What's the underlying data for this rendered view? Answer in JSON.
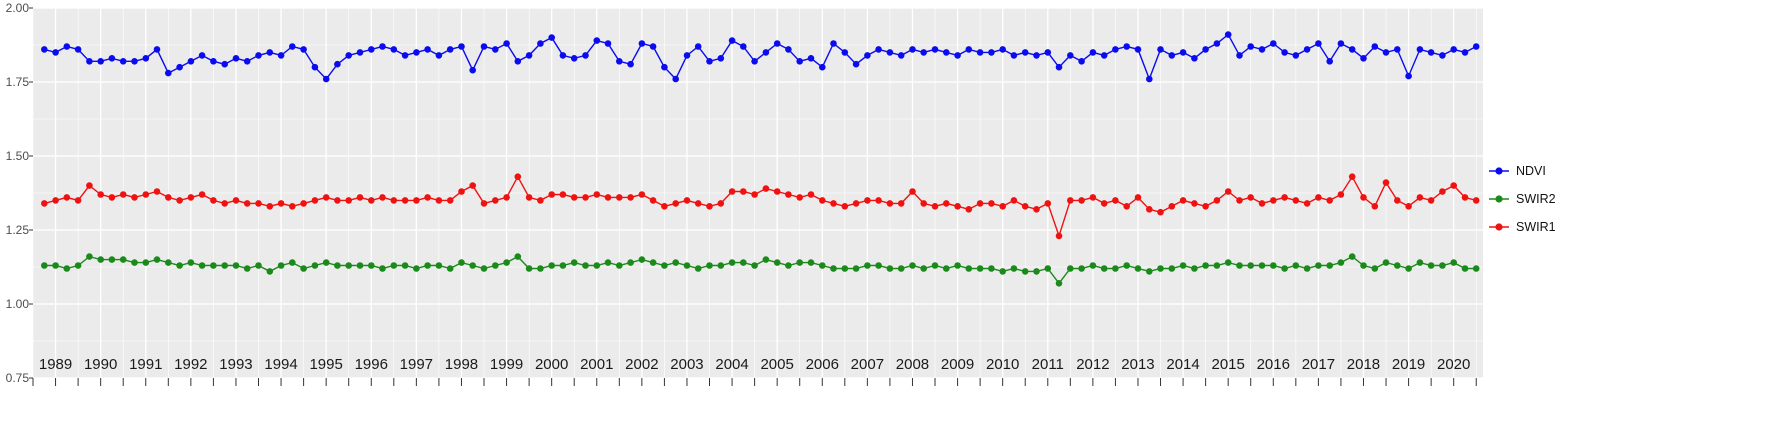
{
  "chart_data": {
    "type": "line",
    "title": "",
    "xlabel": "",
    "ylabel": "",
    "ylim": [
      0.75,
      2.0
    ],
    "grid": true,
    "legend_position": "right",
    "panel_background": "#ebebeb",
    "gridline_color": "#ffffff",
    "x_start": 1988.75,
    "x_step": 0.25,
    "x_ticks": [
      "1989",
      "1990",
      "1991",
      "1992",
      "1993",
      "1994",
      "1995",
      "1996",
      "1997",
      "1998",
      "1999",
      "2000",
      "2001",
      "2002",
      "2003",
      "2004",
      "2005",
      "2006",
      "2007",
      "2008",
      "2009",
      "2010",
      "2011",
      "2012",
      "2013",
      "2014",
      "2015",
      "2016",
      "2017",
      "2018",
      "2019",
      "2020"
    ],
    "y_ticks": [
      "2.00",
      "1.75",
      "1.50",
      "1.25",
      "1.00",
      "0.75"
    ],
    "series": [
      {
        "name": "NDVI",
        "color": "#0b0bf0",
        "values": [
          1.86,
          1.85,
          1.87,
          1.86,
          1.82,
          1.82,
          1.83,
          1.82,
          1.82,
          1.83,
          1.86,
          1.78,
          1.8,
          1.82,
          1.84,
          1.82,
          1.81,
          1.83,
          1.82,
          1.84,
          1.85,
          1.84,
          1.87,
          1.86,
          1.8,
          1.76,
          1.81,
          1.84,
          1.85,
          1.86,
          1.87,
          1.86,
          1.84,
          1.85,
          1.86,
          1.84,
          1.86,
          1.87,
          1.79,
          1.87,
          1.86,
          1.88,
          1.82,
          1.84,
          1.88,
          1.9,
          1.84,
          1.83,
          1.84,
          1.89,
          1.88,
          1.82,
          1.81,
          1.88,
          1.87,
          1.8,
          1.76,
          1.84,
          1.87,
          1.82,
          1.83,
          1.89,
          1.87,
          1.82,
          1.85,
          1.88,
          1.86,
          1.82,
          1.83,
          1.8,
          1.88,
          1.85,
          1.81,
          1.84,
          1.86,
          1.85,
          1.84,
          1.86,
          1.85,
          1.86,
          1.85,
          1.84,
          1.86,
          1.85,
          1.85,
          1.86,
          1.84,
          1.85,
          1.84,
          1.85,
          1.8,
          1.84,
          1.82,
          1.85,
          1.84,
          1.86,
          1.87,
          1.86,
          1.76,
          1.86,
          1.84,
          1.85,
          1.83,
          1.86,
          1.88,
          1.91,
          1.84,
          1.87,
          1.86,
          1.88,
          1.85,
          1.84,
          1.86,
          1.88,
          1.82,
          1.88,
          1.86,
          1.83,
          1.87,
          1.85,
          1.86,
          1.77,
          1.86,
          1.85,
          1.84,
          1.86,
          1.85,
          1.87
        ]
      },
      {
        "name": "SWIR2",
        "color": "#1a8a1a",
        "values": [
          1.13,
          1.13,
          1.12,
          1.13,
          1.16,
          1.15,
          1.15,
          1.15,
          1.14,
          1.14,
          1.15,
          1.14,
          1.13,
          1.14,
          1.13,
          1.13,
          1.13,
          1.13,
          1.12,
          1.13,
          1.11,
          1.13,
          1.14,
          1.12,
          1.13,
          1.14,
          1.13,
          1.13,
          1.13,
          1.13,
          1.12,
          1.13,
          1.13,
          1.12,
          1.13,
          1.13,
          1.12,
          1.14,
          1.13,
          1.12,
          1.13,
          1.14,
          1.16,
          1.12,
          1.12,
          1.13,
          1.13,
          1.14,
          1.13,
          1.13,
          1.14,
          1.13,
          1.14,
          1.15,
          1.14,
          1.13,
          1.14,
          1.13,
          1.12,
          1.13,
          1.13,
          1.14,
          1.14,
          1.13,
          1.15,
          1.14,
          1.13,
          1.14,
          1.14,
          1.13,
          1.12,
          1.12,
          1.12,
          1.13,
          1.13,
          1.12,
          1.12,
          1.13,
          1.12,
          1.13,
          1.12,
          1.13,
          1.12,
          1.12,
          1.12,
          1.11,
          1.12,
          1.11,
          1.11,
          1.12,
          1.07,
          1.12,
          1.12,
          1.13,
          1.12,
          1.12,
          1.13,
          1.12,
          1.11,
          1.12,
          1.12,
          1.13,
          1.12,
          1.13,
          1.13,
          1.14,
          1.13,
          1.13,
          1.13,
          1.13,
          1.12,
          1.13,
          1.12,
          1.13,
          1.13,
          1.14,
          1.16,
          1.13,
          1.12,
          1.14,
          1.13,
          1.12,
          1.14,
          1.13,
          1.13,
          1.14,
          1.12,
          1.12
        ]
      },
      {
        "name": "SWIR1",
        "color": "#f01111",
        "values": [
          1.34,
          1.35,
          1.36,
          1.35,
          1.4,
          1.37,
          1.36,
          1.37,
          1.36,
          1.37,
          1.38,
          1.36,
          1.35,
          1.36,
          1.37,
          1.35,
          1.34,
          1.35,
          1.34,
          1.34,
          1.33,
          1.34,
          1.33,
          1.34,
          1.35,
          1.36,
          1.35,
          1.35,
          1.36,
          1.35,
          1.36,
          1.35,
          1.35,
          1.35,
          1.36,
          1.35,
          1.35,
          1.38,
          1.4,
          1.34,
          1.35,
          1.36,
          1.43,
          1.36,
          1.35,
          1.37,
          1.37,
          1.36,
          1.36,
          1.37,
          1.36,
          1.36,
          1.36,
          1.37,
          1.35,
          1.33,
          1.34,
          1.35,
          1.34,
          1.33,
          1.34,
          1.38,
          1.38,
          1.37,
          1.39,
          1.38,
          1.37,
          1.36,
          1.37,
          1.35,
          1.34,
          1.33,
          1.34,
          1.35,
          1.35,
          1.34,
          1.34,
          1.38,
          1.34,
          1.33,
          1.34,
          1.33,
          1.32,
          1.34,
          1.34,
          1.33,
          1.35,
          1.33,
          1.32,
          1.34,
          1.23,
          1.35,
          1.35,
          1.36,
          1.34,
          1.35,
          1.33,
          1.36,
          1.32,
          1.31,
          1.33,
          1.35,
          1.34,
          1.33,
          1.35,
          1.38,
          1.35,
          1.36,
          1.34,
          1.35,
          1.36,
          1.35,
          1.34,
          1.36,
          1.35,
          1.37,
          1.43,
          1.36,
          1.33,
          1.41,
          1.35,
          1.33,
          1.36,
          1.35,
          1.38,
          1.4,
          1.36,
          1.35
        ]
      }
    ]
  },
  "legend": {
    "items": [
      {
        "label": "NDVI"
      },
      {
        "label": "SWIR2"
      },
      {
        "label": "SWIR1"
      }
    ]
  }
}
